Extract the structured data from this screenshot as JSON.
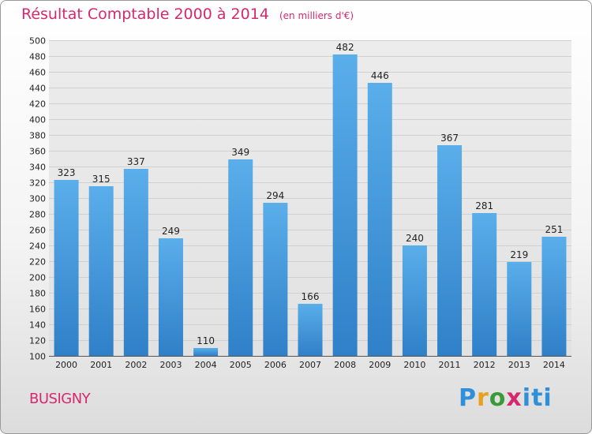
{
  "header": {
    "title": "Résultat Comptable 2000 à 2014",
    "subtitle": "(en milliers d'€)"
  },
  "location": "BUSIGNY",
  "brand": {
    "name": "Proxiti",
    "letters": [
      "P",
      "r",
      "o",
      "x",
      "iti"
    ]
  },
  "colors": {
    "bar_top": "#5aaeea",
    "bar_bottom": "#2f80c8",
    "title": "#d6296d",
    "grid": "#d0d0d0"
  },
  "chart_data": {
    "type": "bar",
    "title": "Résultat Comptable 2000 à 2014",
    "subtitle": "(en milliers d'€)",
    "categories": [
      "2000",
      "2001",
      "2002",
      "2003",
      "2004",
      "2005",
      "2006",
      "2007",
      "2008",
      "2009",
      "2010",
      "2011",
      "2012",
      "2013",
      "2014"
    ],
    "values": [
      323,
      315,
      337,
      249,
      110,
      349,
      294,
      166,
      482,
      446,
      240,
      367,
      281,
      219,
      251
    ],
    "ylim": [
      100,
      500
    ],
    "yticks": [
      100,
      120,
      140,
      160,
      180,
      200,
      220,
      240,
      260,
      280,
      300,
      320,
      340,
      360,
      380,
      400,
      420,
      440,
      460,
      480,
      500
    ],
    "grid": true,
    "data_labels": true
  }
}
